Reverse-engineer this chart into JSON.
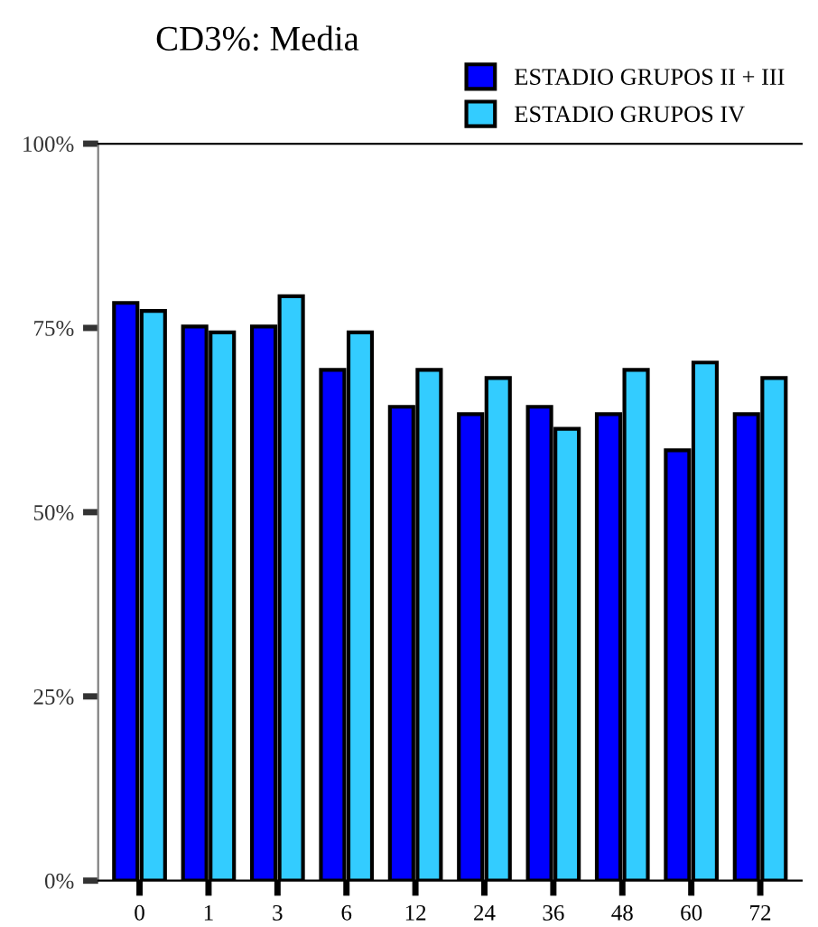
{
  "chart_data": {
    "type": "bar",
    "title": "CD3%: Media",
    "categories": [
      "0",
      "1",
      "3",
      "6",
      "12",
      "24",
      "36",
      "48",
      "60",
      "72"
    ],
    "series": [
      {
        "name": "ESTADIO GRUPOS II + III",
        "color": "#0000ff",
        "values": [
          78.4,
          75.2,
          75.2,
          69.3,
          64.3,
          63.3,
          64.3,
          63.3,
          58.4,
          63.3
        ]
      },
      {
        "name": "ESTADIO GRUPOS IV",
        "color": "#33ccff",
        "values": [
          77.3,
          74.4,
          79.3,
          74.4,
          69.3,
          68.2,
          61.3,
          69.3,
          70.3,
          68.2
        ]
      }
    ],
    "ylim": [
      0,
      100
    ],
    "yticks": [
      {
        "value": 0,
        "label": "0%"
      },
      {
        "value": 25,
        "label": "25%"
      },
      {
        "value": 50,
        "label": "50%"
      },
      {
        "value": 75,
        "label": "75%"
      },
      {
        "value": 100,
        "label": "100%"
      }
    ],
    "grid": false,
    "legend": "top right"
  }
}
